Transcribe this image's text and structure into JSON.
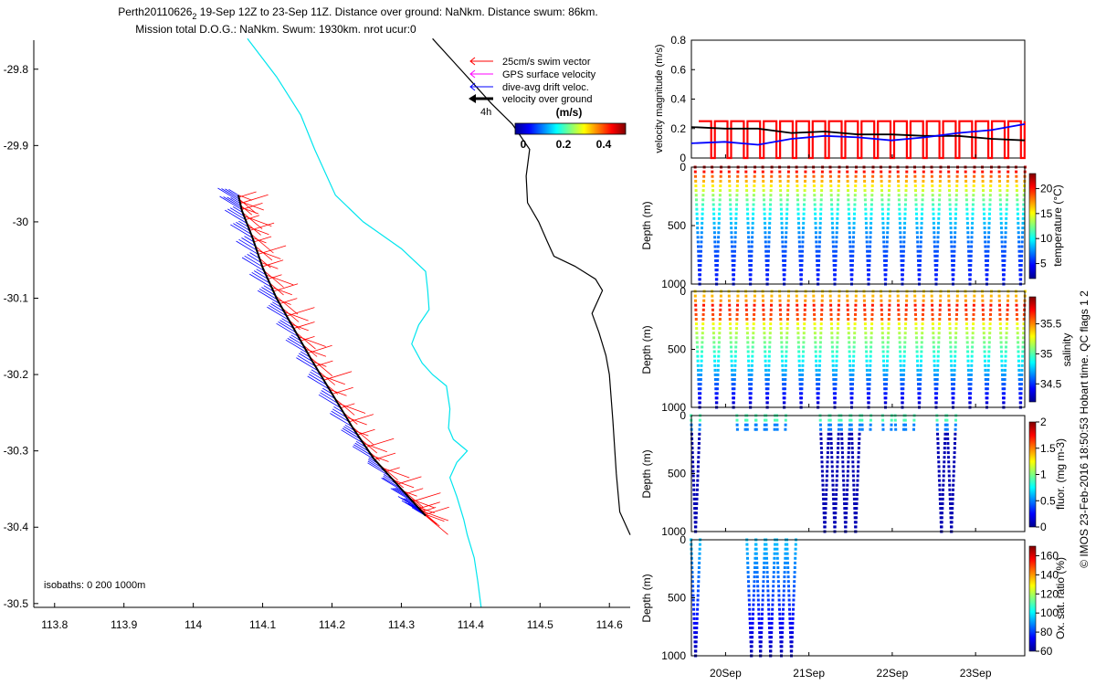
{
  "title": {
    "line1_prefix": "Perth20110626",
    "line1_sub": "2",
    "line1_rest": " 19-Sep 12Z to 23-Sep 11Z. Distance over ground: NaNkm. Distance swum: 86km.",
    "line2": "Mission total D.O.G.: NaNkm. Swum: 1930km. nrot ucur:0"
  },
  "map": {
    "xticks": [
      113.8,
      113.9,
      114,
      114.1,
      114.2,
      114.3,
      114.4,
      114.5,
      114.6
    ],
    "xtick_labels": [
      "113.8",
      "113.9",
      "114",
      "114.1",
      "114.2",
      "114.3",
      "114.4",
      "114.5",
      "114.6"
    ],
    "yticks": [
      -29.8,
      -29.9,
      -30,
      -30.1,
      -30.2,
      -30.3,
      -30.4,
      -30.5
    ],
    "ytick_labels": [
      "-29.8",
      "-29.9",
      "-30",
      "-30.1",
      "-30.2",
      "-30.3",
      "-30.4",
      "-30.5"
    ],
    "xlim": [
      113.77,
      114.63
    ],
    "ylim": [
      -30.505,
      -29.762
    ],
    "isobath_label": "isobaths: 0   200  1000m",
    "legend": [
      {
        "label": "25cm/s swim vector",
        "color": "#ff0000"
      },
      {
        "label": "GPS surface velocity",
        "color": "#ff00ff"
      },
      {
        "label": "dive-avg drift veloc.",
        "color": "#0000ff"
      },
      {
        "label": "velocity over ground",
        "color": "#000000"
      }
    ],
    "legend_arrow_label": "4h",
    "colorbar_title": "(m/s)",
    "colorbar_ticks": [
      "0",
      "0.2",
      "0.4"
    ],
    "colors": {
      "isobath_200": "#00e5ee",
      "isobath_1000": "#000000",
      "swim": "#ff0000",
      "drift": "#0000ff",
      "track": "#000000"
    }
  },
  "chart_data": [
    {
      "type": "line",
      "panel": "map",
      "x_label": "",
      "y_label": "",
      "series": [
        {
          "name": "200m isobath",
          "points": [
            [
              114.078,
              -29.76
            ],
            [
              114.12,
              -29.81
            ],
            [
              114.155,
              -29.86
            ],
            [
              114.175,
              -29.905
            ],
            [
              114.205,
              -29.965
            ],
            [
              114.245,
              -30.0
            ],
            [
              114.3,
              -30.035
            ],
            [
              114.335,
              -30.065
            ],
            [
              114.338,
              -30.09
            ],
            [
              114.34,
              -30.115
            ],
            [
              114.325,
              -30.135
            ],
            [
              114.315,
              -30.16
            ],
            [
              114.33,
              -30.185
            ],
            [
              114.345,
              -30.2
            ],
            [
              114.365,
              -30.215
            ],
            [
              114.37,
              -30.245
            ],
            [
              114.368,
              -30.27
            ],
            [
              114.375,
              -30.285
            ],
            [
              114.395,
              -30.3
            ],
            [
              114.38,
              -30.315
            ],
            [
              114.37,
              -30.335
            ],
            [
              114.38,
              -30.36
            ],
            [
              114.39,
              -30.39
            ],
            [
              114.395,
              -30.41
            ],
            [
              114.405,
              -30.44
            ],
            [
              114.41,
              -30.47
            ],
            [
              114.415,
              -30.505
            ]
          ]
        },
        {
          "name": "1000m isobath",
          "points": [
            [
              114.345,
              -29.76
            ],
            [
              114.375,
              -29.79
            ],
            [
              114.4,
              -29.815
            ],
            [
              114.43,
              -29.845
            ],
            [
              114.46,
              -29.872
            ],
            [
              114.485,
              -29.905
            ],
            [
              114.48,
              -29.94
            ],
            [
              114.482,
              -29.975
            ],
            [
              114.498,
              -30.0
            ],
            [
              114.51,
              -30.025
            ],
            [
              114.52,
              -30.045
            ],
            [
              114.55,
              -30.058
            ],
            [
              114.58,
              -30.075
            ],
            [
              114.59,
              -30.09
            ],
            [
              114.575,
              -30.12
            ],
            [
              114.585,
              -30.145
            ],
            [
              114.595,
              -30.175
            ],
            [
              114.6,
              -30.2
            ],
            [
              114.605,
              -30.26
            ],
            [
              114.61,
              -30.33
            ],
            [
              114.615,
              -30.38
            ],
            [
              114.63,
              -30.41
            ]
          ]
        },
        {
          "name": "track",
          "points": [
            [
              114.065,
              -29.965
            ],
            [
              114.07,
              -29.985
            ],
            [
              114.085,
              -30.02
            ],
            [
              114.1,
              -30.06
            ],
            [
              114.12,
              -30.1
            ],
            [
              114.145,
              -30.14
            ],
            [
              114.17,
              -30.18
            ],
            [
              114.2,
              -30.225
            ],
            [
              114.23,
              -30.27
            ],
            [
              114.26,
              -30.31
            ],
            [
              114.3,
              -30.35
            ],
            [
              114.325,
              -30.375
            ],
            [
              114.335,
              -30.385
            ]
          ]
        }
      ]
    },
    {
      "type": "line",
      "panel": "velocity",
      "ylabel": "velocity magnitude (m/s)",
      "ylim": [
        0,
        0.8
      ],
      "yticks": [
        0,
        0.2,
        0.4,
        0.6,
        0.8
      ],
      "ytick_labels": [
        "0",
        "0.2",
        "0.4",
        "0.6",
        "0.8"
      ],
      "series": [
        {
          "name": "swim",
          "color": "#ff0000",
          "level": 0.25,
          "dives": 20
        },
        {
          "name": "over ground",
          "color": "#000000",
          "x": [
            0,
            0.1,
            0.2,
            0.3,
            0.4,
            0.5,
            0.6,
            0.7,
            0.8,
            0.9,
            1.0
          ],
          "y": [
            0.21,
            0.2,
            0.2,
            0.17,
            0.18,
            0.16,
            0.16,
            0.15,
            0.15,
            0.13,
            0.12
          ]
        },
        {
          "name": "drift",
          "color": "#0000ff",
          "x": [
            0,
            0.1,
            0.2,
            0.3,
            0.4,
            0.5,
            0.6,
            0.7,
            0.8,
            0.9,
            1.0
          ],
          "y": [
            0.1,
            0.11,
            0.09,
            0.13,
            0.15,
            0.14,
            0.12,
            0.14,
            0.17,
            0.19,
            0.23
          ]
        }
      ]
    },
    {
      "type": "scatter",
      "panel": "temperature",
      "ylabel": "Depth (m)",
      "ylim": [
        1000,
        0
      ],
      "ytick_labels": [
        "0",
        "500",
        "1000"
      ],
      "colorbar_label": "temperature (°C)",
      "clim": [
        2,
        23
      ],
      "colorbar_ticks": [
        5,
        10,
        15,
        20
      ],
      "colorbar_tick_labels": [
        "5",
        "10",
        "15",
        "20"
      ],
      "dives": 20,
      "surface_value": 22,
      "deep_value": 4
    },
    {
      "type": "scatter",
      "panel": "salinity",
      "ylabel": "Depth (m)",
      "ylim": [
        1000,
        0
      ],
      "ytick_labels": [
        "0",
        "500",
        "1000"
      ],
      "colorbar_label": "salinity",
      "clim": [
        34.2,
        35.95
      ],
      "colorbar_ticks": [
        34.5,
        35,
        35.5
      ],
      "colorbar_tick_labels": [
        "34.5",
        "35",
        "35.5"
      ],
      "dives": 20
    },
    {
      "type": "scatter",
      "panel": "fluorescence",
      "ylabel": "Depth (m)",
      "ylim": [
        1000,
        0
      ],
      "ytick_labels": [
        "0",
        "500",
        "1000"
      ],
      "colorbar_label": "fluor. (mg m-3)",
      "clim": [
        0,
        2
      ],
      "colorbar_ticks": [
        0,
        0.5,
        1,
        1.5,
        2
      ],
      "colorbar_tick_labels": [
        "0",
        "0.5",
        "1",
        "1.5",
        "2"
      ],
      "dive_days": [
        0.05,
        0.6,
        0.72,
        0.83,
        0.95,
        1.08,
        1.6,
        1.72,
        1.85,
        1.97,
        2.1,
        2.35,
        2.5,
        2.62,
        3.0,
        3.12
      ]
    },
    {
      "type": "scatter",
      "panel": "oxygen",
      "ylabel": "Depth (m)",
      "ylim": [
        1000,
        0
      ],
      "ytick_labels": [
        "0",
        "500",
        "1000"
      ],
      "colorbar_label": "Ox. sat. ratio (%)",
      "clim": [
        60,
        170
      ],
      "colorbar_ticks": [
        60,
        80,
        100,
        120,
        140,
        160
      ],
      "colorbar_tick_labels": [
        "60",
        "80",
        "100",
        "120",
        "140",
        "160"
      ],
      "dive_days": [
        0.05,
        0.72,
        0.83,
        0.95,
        1.08,
        1.2
      ]
    }
  ],
  "time_axis": {
    "ticks": [
      "20Sep",
      "21Sep",
      "22Sep",
      "23Sep"
    ]
  },
  "side_credit": "© IMOS 23-Feb-2016 18:50:53 Hobart time. QC flags 1  2"
}
